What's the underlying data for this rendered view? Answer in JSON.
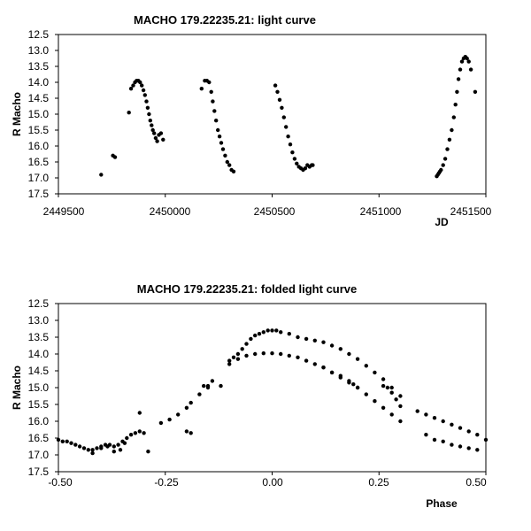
{
  "chart_data": [
    {
      "type": "scatter",
      "title": "MACHO 179.22235.21: light curve",
      "xlabel": "JD",
      "ylabel": "R Macho",
      "xlim": [
        2449500,
        2451500
      ],
      "ylim": [
        12.5,
        17.5
      ],
      "y_inverted": true,
      "grid": false,
      "xticks": [
        "2449500",
        "2450000",
        "2450500",
        "2451000",
        "2451500"
      ],
      "yticks": [
        "12.5",
        "13.0",
        "13.5",
        "14.0",
        "14.5",
        "15.0",
        "15.5",
        "16.0",
        "16.5",
        "17.0",
        "17.5"
      ],
      "marker_color": "#000000",
      "series": [
        {
          "x": [
            2449700,
            2449755,
            2449765,
            2449830,
            2449840,
            2449850,
            2449858,
            2449866,
            2449874,
            2449882,
            2449890,
            2449898,
            2449905,
            2449912,
            2449918,
            2449924,
            2449930,
            2449936,
            2449942,
            2449948,
            2449955,
            2449962,
            2449970,
            2449980,
            2449990,
            2450170,
            2450185,
            2450195,
            2450205,
            2450215,
            2450222,
            2450230,
            2450238,
            2450246,
            2450254,
            2450262,
            2450270,
            2450280,
            2450290,
            2450300,
            2450310,
            2450320,
            2450515,
            2450525,
            2450535,
            2450545,
            2450555,
            2450565,
            2450575,
            2450585,
            2450595,
            2450605,
            2450615,
            2450625,
            2450635,
            2450645,
            2450655,
            2450665,
            2450675,
            2450685,
            2450690,
            2451270,
            2451275,
            2451280,
            2451285,
            2451290,
            2451300,
            2451310,
            2451320,
            2451330,
            2451340,
            2451350,
            2451358,
            2451365,
            2451372,
            2451380,
            2451388,
            2451396,
            2451404,
            2451412,
            2451420,
            2451430,
            2451450
          ],
          "y": [
            16.9,
            16.3,
            16.35,
            14.95,
            14.2,
            14.1,
            14.0,
            13.95,
            13.95,
            14.0,
            14.1,
            14.25,
            14.4,
            14.6,
            14.8,
            15.0,
            15.2,
            15.35,
            15.5,
            15.6,
            15.75,
            15.85,
            15.65,
            15.6,
            15.8,
            14.2,
            13.95,
            13.95,
            14.0,
            14.3,
            14.6,
            14.9,
            15.2,
            15.5,
            15.7,
            15.9,
            16.1,
            16.3,
            16.5,
            16.6,
            16.75,
            16.8,
            14.1,
            14.3,
            14.55,
            14.8,
            15.1,
            15.4,
            15.7,
            15.95,
            16.2,
            16.4,
            16.55,
            16.65,
            16.7,
            16.75,
            16.7,
            16.6,
            16.65,
            16.6,
            16.6,
            16.95,
            16.9,
            16.85,
            16.8,
            16.75,
            16.6,
            16.4,
            16.1,
            15.8,
            15.5,
            15.1,
            14.7,
            14.3,
            13.9,
            13.6,
            13.35,
            13.25,
            13.2,
            13.25,
            13.35,
            13.6,
            14.3
          ]
        }
      ]
    },
    {
      "type": "scatter",
      "title": "MACHO 179.22235.21: folded light curve",
      "xlabel": "Phase",
      "ylabel": "R Macho",
      "xlim": [
        -0.5,
        0.5
      ],
      "ylim": [
        12.5,
        17.5
      ],
      "y_inverted": true,
      "grid": false,
      "xticks": [
        "-0.50",
        "-0.25",
        "0.00",
        "0.25",
        "0.50"
      ],
      "yticks": [
        "12.5",
        "13.0",
        "13.5",
        "14.0",
        "14.5",
        "15.0",
        "15.5",
        "16.0",
        "16.5",
        "17.0",
        "17.5"
      ],
      "marker_color": "#000000",
      "series": [
        {
          "x": [
            -0.5,
            -0.49,
            -0.48,
            -0.47,
            -0.46,
            -0.45,
            -0.44,
            -0.43,
            -0.42,
            -0.41,
            -0.4,
            -0.39,
            -0.38,
            -0.37,
            -0.36,
            -0.35,
            -0.34,
            -0.33,
            -0.32,
            -0.31,
            -0.3,
            -0.42,
            -0.4,
            -0.385,
            -0.37,
            -0.355,
            -0.345,
            -0.31,
            -0.29,
            -0.26,
            -0.24,
            -0.22,
            -0.2,
            -0.19,
            -0.17,
            -0.15,
            -0.14,
            -0.15,
            -0.16,
            -0.2,
            -0.19,
            -0.12,
            -0.1,
            -0.09,
            -0.08,
            -0.07,
            -0.06,
            -0.05,
            -0.04,
            -0.03,
            -0.02,
            -0.01,
            0.0,
            0.01,
            0.02,
            0.04,
            0.06,
            0.08,
            0.1,
            0.12,
            0.14,
            0.16,
            0.18,
            0.2,
            0.22,
            0.24,
            0.26,
            0.28,
            0.3,
            -0.1,
            -0.08,
            -0.06,
            -0.04,
            -0.02,
            0.0,
            0.02,
            0.04,
            0.06,
            0.08,
            0.1,
            0.12,
            0.14,
            0.16,
            0.18,
            0.2,
            0.22,
            0.24,
            0.26,
            0.28,
            0.3,
            0.12,
            0.14,
            0.16,
            0.18,
            0.19,
            0.2,
            0.26,
            0.27,
            0.28,
            0.29,
            0.3,
            0.34,
            0.36,
            0.38,
            0.4,
            0.42,
            0.44,
            0.46,
            0.48,
            0.5,
            0.36,
            0.38,
            0.4,
            0.42,
            0.44,
            0.46,
            0.48
          ],
          "y": [
            16.55,
            16.6,
            16.6,
            16.65,
            16.7,
            16.75,
            16.8,
            16.85,
            16.85,
            16.8,
            16.75,
            16.7,
            16.7,
            16.75,
            16.7,
            16.6,
            16.5,
            16.4,
            16.35,
            16.3,
            16.35,
            16.95,
            16.8,
            16.75,
            16.9,
            16.85,
            16.65,
            15.75,
            16.9,
            16.05,
            15.95,
            15.8,
            15.6,
            15.45,
            15.2,
            14.95,
            14.8,
            15.0,
            14.95,
            16.3,
            16.35,
            14.95,
            14.3,
            14.1,
            14.0,
            13.85,
            13.7,
            13.55,
            13.45,
            13.4,
            13.35,
            13.3,
            13.3,
            13.3,
            13.35,
            13.4,
            13.5,
            13.55,
            13.6,
            13.65,
            13.75,
            13.85,
            14.0,
            14.15,
            14.35,
            14.55,
            14.75,
            15.0,
            15.25,
            14.2,
            14.15,
            14.05,
            14.0,
            13.98,
            13.98,
            14.0,
            14.05,
            14.1,
            14.2,
            14.3,
            14.4,
            14.55,
            14.7,
            14.85,
            15.0,
            15.2,
            15.4,
            15.6,
            15.8,
            16.0,
            14.4,
            14.55,
            14.65,
            14.8,
            14.9,
            15.0,
            14.95,
            15.0,
            15.15,
            15.35,
            15.55,
            15.7,
            15.8,
            15.9,
            16.0,
            16.1,
            16.2,
            16.3,
            16.4,
            16.55,
            16.4,
            16.55,
            16.6,
            16.7,
            16.75,
            16.8,
            16.85
          ]
        }
      ]
    }
  ]
}
